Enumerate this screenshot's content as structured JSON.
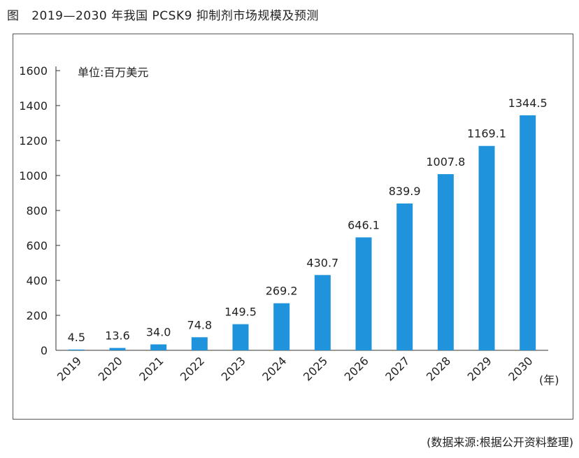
{
  "page": {
    "figure_label": "图",
    "figure_title": "2019—2030 年我国 PCSK9 抑制剂市场规模及预测",
    "source_note": "(数据来源:根据公开资料整理)"
  },
  "chart_data": {
    "type": "bar",
    "title": "2019—2030 年我国 PCSK9 抑制剂市场规模及预测",
    "unit_label": "单位:百万美元",
    "x_unit": "(年)",
    "categories": [
      "2019",
      "2020",
      "2021",
      "2022",
      "2023",
      "2024",
      "2025",
      "2026",
      "2027",
      "2028",
      "2029",
      "2030"
    ],
    "values": [
      4.5,
      13.6,
      34.0,
      74.8,
      149.5,
      269.2,
      430.7,
      646.1,
      839.9,
      1007.8,
      1169.1,
      1344.5
    ],
    "value_labels": [
      "4.5",
      "13.6",
      "34.0",
      "74.8",
      "149.5",
      "269.2",
      "430.7",
      "646.1",
      "839.9",
      "1007.8",
      "1169.1",
      "1344.5"
    ],
    "y_ticks": [
      0,
      200,
      400,
      600,
      800,
      1000,
      1200,
      1400,
      1600
    ],
    "ylim": [
      0,
      1600
    ],
    "bar_color": "#1f93dc",
    "grid": false,
    "legend": "none"
  }
}
